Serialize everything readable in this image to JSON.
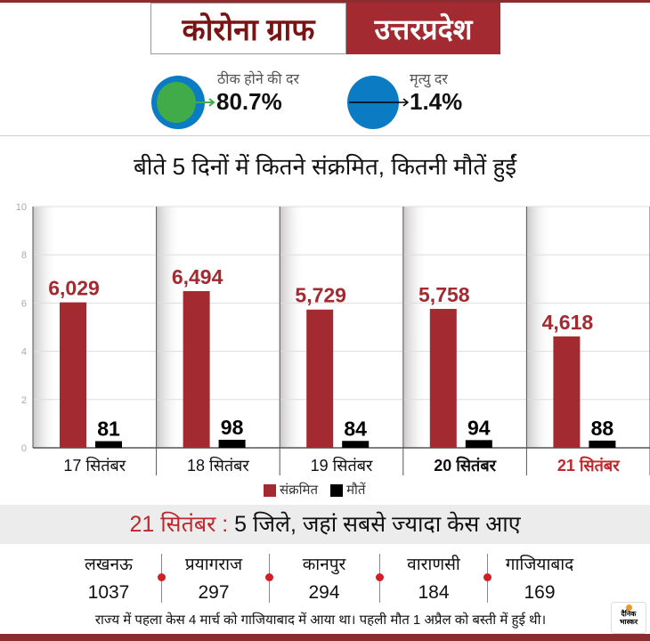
{
  "header": {
    "title": "कोरोना ग्राफ",
    "state": "उत्तरप्रदेश"
  },
  "rates": {
    "recovery_label": "ठीक होने की दर",
    "recovery_value": "80.7%",
    "death_label": "मृत्यु दर",
    "death_value": "1.4%"
  },
  "colors": {
    "accent": "#a32a30",
    "green": "#3fac49",
    "blue": "#0b7cc4"
  },
  "chart_data": {
    "type": "bar",
    "title": "बीते 5 दिनों में कितने संक्रमित, कितनी मौतें हुईं",
    "categories": [
      "17 सितंबर",
      "18 सितंबर",
      "19 सितंबर",
      "20 सितंबर",
      "21 सितंबर"
    ],
    "series": [
      {
        "name": "संक्रमित",
        "values": [
          6029,
          6494,
          5729,
          5758,
          4618
        ],
        "labels": [
          "6,029",
          "6,494",
          "5,729",
          "5,758",
          "4,618"
        ],
        "color": "#a32a30"
      },
      {
        "name": "मौतें",
        "values": [
          81,
          98,
          84,
          94,
          88
        ],
        "labels": [
          "81",
          "98",
          "84",
          "94",
          "88"
        ],
        "color": "#000000"
      }
    ],
    "yticks": [
      "0",
      "2",
      "4",
      "6",
      "8",
      "10"
    ],
    "ylim": [
      0,
      10
    ],
    "yunit": "thousands",
    "highlight_category": "21 सितंबर",
    "legend": "bottom-center"
  },
  "districts": {
    "title_date": "21 सितंबर :",
    "title_rest": " 5 जिले, जहां सबसे ज्यादा केस आए",
    "items": [
      {
        "name": "लखनऊ",
        "value": "1037"
      },
      {
        "name": "प्रयागराज",
        "value": "297"
      },
      {
        "name": "कानपुर",
        "value": "294"
      },
      {
        "name": "वाराणसी",
        "value": "184"
      },
      {
        "name": "गाजियाबाद",
        "value": "169"
      }
    ]
  },
  "footer": {
    "note": "राज्य में पहला केस 4 मार्च को गाजियाबाद में आया था। पहली मौत 1 अप्रैल को बस्ती में हुई थी।",
    "logo": "दैनिक भास्कर"
  }
}
